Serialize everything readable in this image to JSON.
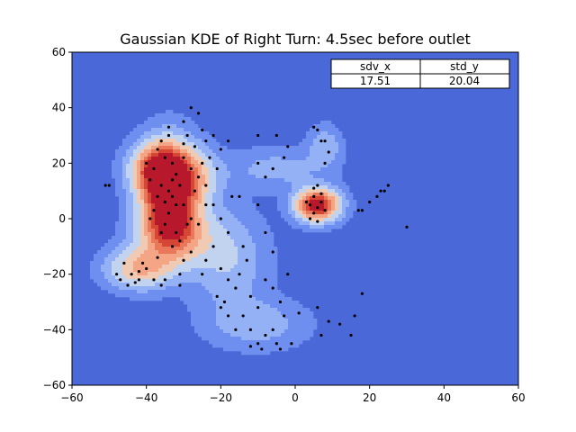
{
  "chart_data": {
    "type": "heatmap",
    "title": "Gaussian KDE of Right Turn: 4.5sec before outlet",
    "xlabel": "",
    "ylabel": "",
    "xlim": [
      -60,
      60
    ],
    "ylim": [
      -60,
      60
    ],
    "xticks": [
      "−60",
      "−40",
      "−20",
      "0",
      "20",
      "40",
      "60"
    ],
    "yticks": [
      "−60",
      "−40",
      "−20",
      "0",
      "20",
      "40",
      "60"
    ],
    "grid": false,
    "colormap": "coolwarm",
    "table": {
      "headers": [
        "sdv_x",
        "std_y"
      ],
      "values": [
        "17.51",
        "20.04"
      ],
      "placement": "top-right"
    },
    "density_components": [
      {
        "x": -34,
        "y": 8,
        "sx": 5,
        "sy": 12,
        "w": 1.0
      },
      {
        "x": -37,
        "y": 18,
        "sx": 5,
        "sy": 6,
        "w": 0.6
      },
      {
        "x": -42,
        "y": -18,
        "sx": 6,
        "sy": 5,
        "w": 0.45
      },
      {
        "x": -32,
        "y": -6,
        "sx": 7,
        "sy": 7,
        "w": 0.4
      },
      {
        "x": -27,
        "y": 15,
        "sx": 5,
        "sy": 7,
        "w": 0.3
      },
      {
        "x": 6,
        "y": 5,
        "sx": 4,
        "sy": 4,
        "w": 0.95
      },
      {
        "x": -18,
        "y": -15,
        "sx": 7,
        "sy": 12,
        "w": 0.22
      },
      {
        "x": -10,
        "y": -38,
        "sx": 9,
        "sy": 6,
        "w": 0.18
      },
      {
        "x": -5,
        "y": 18,
        "sx": 9,
        "sy": 5,
        "w": 0.16
      },
      {
        "x": 8,
        "y": 26,
        "sx": 3,
        "sy": 5,
        "w": 0.2
      }
    ],
    "points": [
      [
        -34,
        10
      ],
      [
        -33,
        8
      ],
      [
        -35,
        6
      ],
      [
        -36,
        12
      ],
      [
        -32,
        5
      ],
      [
        -34,
        2
      ],
      [
        -33,
        14
      ],
      [
        -37,
        8
      ],
      [
        -35,
        -2
      ],
      [
        -32,
        -5
      ],
      [
        -36,
        -5
      ],
      [
        -38,
        18
      ],
      [
        -40,
        20
      ],
      [
        -35,
        22
      ],
      [
        -37,
        25
      ],
      [
        -33,
        20
      ],
      [
        -30,
        22
      ],
      [
        -28,
        18
      ],
      [
        -26,
        15
      ],
      [
        -25,
        20
      ],
      [
        -27,
        10
      ],
      [
        -30,
        5
      ],
      [
        -29,
        -2
      ],
      [
        -31,
        -8
      ],
      [
        -33,
        -10
      ],
      [
        -28,
        -12
      ],
      [
        -30,
        -15
      ],
      [
        -44,
        -20
      ],
      [
        -42,
        -22
      ],
      [
        -40,
        -18
      ],
      [
        -46,
        -16
      ],
      [
        -38,
        -22
      ],
      [
        -36,
        -24
      ],
      [
        -48,
        -20
      ],
      [
        -45,
        -24
      ],
      [
        -41,
        -16
      ],
      [
        -34,
        30
      ],
      [
        -30,
        35
      ],
      [
        -28,
        40
      ],
      [
        -26,
        38
      ],
      [
        -25,
        32
      ],
      [
        -24,
        28
      ],
      [
        -22,
        30
      ],
      [
        -20,
        25
      ],
      [
        -18,
        28
      ],
      [
        -23,
        22
      ],
      [
        -21,
        18
      ],
      [
        -24,
        12
      ],
      [
        -22,
        5
      ],
      [
        -20,
        0
      ],
      [
        -18,
        -5
      ],
      [
        -22,
        -10
      ],
      [
        -24,
        -15
      ],
      [
        -25,
        -20
      ],
      [
        -20,
        -18
      ],
      [
        -18,
        -22
      ],
      [
        -16,
        -25
      ],
      [
        -19,
        -30
      ],
      [
        -21,
        -28
      ],
      [
        -15,
        -20
      ],
      [
        -13,
        -15
      ],
      [
        -14,
        -10
      ],
      [
        -12,
        -28
      ],
      [
        -10,
        -32
      ],
      [
        -14,
        -35
      ],
      [
        -12,
        -40
      ],
      [
        -8,
        -42
      ],
      [
        -10,
        -45
      ],
      [
        -6,
        -40
      ],
      [
        -4,
        -30
      ],
      [
        -6,
        -25
      ],
      [
        -2,
        -20
      ],
      [
        -3,
        -35
      ],
      [
        -5,
        -45
      ],
      [
        -9,
        -47
      ],
      [
        -12,
        -46
      ],
      [
        -16,
        -40
      ],
      [
        -18,
        -35
      ],
      [
        -20,
        -32
      ],
      [
        -8,
        -22
      ],
      [
        -6,
        -12
      ],
      [
        -8,
        -5
      ],
      [
        -10,
        5
      ],
      [
        -8,
        15
      ],
      [
        -6,
        18
      ],
      [
        -10,
        20
      ],
      [
        -3,
        22
      ],
      [
        -2,
        26
      ],
      [
        -5,
        30
      ],
      [
        -10,
        30
      ],
      [
        -15,
        8
      ],
      [
        -17,
        8
      ],
      [
        4,
        5
      ],
      [
        5,
        2
      ],
      [
        6,
        4
      ],
      [
        7,
        6
      ],
      [
        5,
        8
      ],
      [
        4,
        0
      ],
      [
        6,
        -1
      ],
      [
        8,
        3
      ],
      [
        3,
        6
      ],
      [
        7,
        9
      ],
      [
        5,
        11
      ],
      [
        6,
        12
      ],
      [
        5,
        33
      ],
      [
        6,
        32
      ],
      [
        7,
        28
      ],
      [
        9,
        24
      ],
      [
        8,
        28
      ],
      [
        8,
        20
      ],
      [
        18,
        3
      ],
      [
        20,
        6
      ],
      [
        22,
        8
      ],
      [
        24,
        10
      ],
      [
        25,
        12
      ],
      [
        23,
        10
      ],
      [
        30,
        -3
      ],
      [
        17,
        3
      ],
      [
        12,
        -38
      ],
      [
        15,
        -42
      ],
      [
        16,
        -35
      ],
      [
        18,
        -27
      ],
      [
        7,
        -42
      ],
      [
        9,
        -37
      ],
      [
        6,
        -32
      ],
      [
        1,
        -34
      ],
      [
        -1,
        -45
      ],
      [
        -4,
        -47
      ],
      [
        -50,
        12
      ],
      [
        -51,
        12
      ],
      [
        -37,
        -14
      ],
      [
        -31,
        -20
      ],
      [
        -30,
        27
      ],
      [
        -34,
        33
      ],
      [
        -36,
        28
      ],
      [
        -39,
        14
      ],
      [
        -38,
        3
      ],
      [
        -39,
        0
      ],
      [
        -26,
        -2
      ],
      [
        -24,
        5
      ],
      [
        -28,
        0
      ],
      [
        -31,
        12
      ],
      [
        -32,
        16
      ],
      [
        -29,
        30
      ],
      [
        -27,
        26
      ],
      [
        -31,
        -24
      ],
      [
        -35,
        -22
      ],
      [
        -43,
        -23
      ],
      [
        -47,
        -22
      ],
      [
        -42,
        -19
      ]
    ]
  }
}
